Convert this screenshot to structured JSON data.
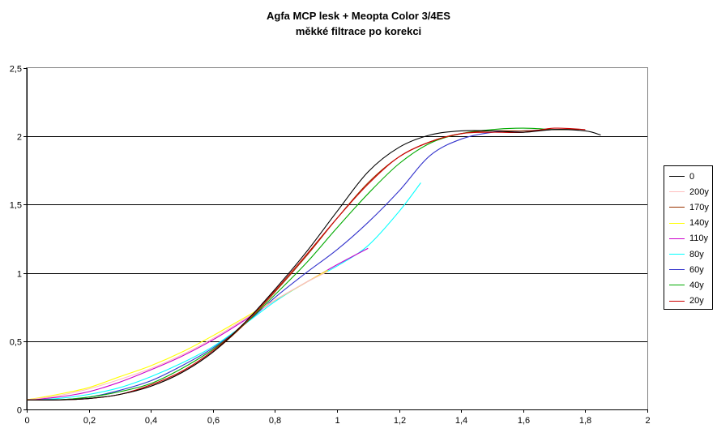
{
  "chart_data": {
    "type": "line",
    "title": "Agfa MCP lesk + Meopta Color 3/4ES",
    "subtitle": "měkké filtrace po korekci",
    "xlabel": "",
    "ylabel": "",
    "xlim": [
      0,
      2
    ],
    "ylim": [
      0,
      2.5
    ],
    "x_ticks": [
      "0",
      "0,2",
      "0,4",
      "0,6",
      "0,8",
      "1",
      "1,2",
      "1,4",
      "1,6",
      "1,8",
      "2"
    ],
    "y_ticks": [
      "0",
      "0,5",
      "1",
      "1,5",
      "2",
      "2,5"
    ],
    "grid": "horizontal",
    "legend": "right",
    "series": [
      {
        "name": "0",
        "color": "#000000",
        "x": [
          0,
          0.1,
          0.2,
          0.3,
          0.4,
          0.5,
          0.6,
          0.7,
          0.8,
          0.9,
          1.0,
          1.1,
          1.2,
          1.3,
          1.4,
          1.5,
          1.6,
          1.7,
          1.8,
          1.85
        ],
        "y": [
          0.07,
          0.07,
          0.08,
          0.11,
          0.17,
          0.27,
          0.42,
          0.63,
          0.88,
          1.15,
          1.45,
          1.74,
          1.92,
          2.01,
          2.04,
          2.04,
          2.03,
          2.05,
          2.04,
          2.01
        ]
      },
      {
        "name": "200y",
        "color": "#ffbfbf",
        "x": [
          0,
          0.1,
          0.2,
          0.3,
          0.4,
          0.5,
          0.6,
          0.7,
          0.8,
          0.9,
          0.97
        ],
        "y": [
          0.07,
          0.1,
          0.15,
          0.22,
          0.3,
          0.4,
          0.52,
          0.66,
          0.8,
          0.93,
          1.01
        ]
      },
      {
        "name": "170y",
        "color": "#993300",
        "x": [
          0,
          0.1,
          0.2,
          0.3,
          0.4,
          0.5,
          0.6,
          0.7,
          0.8,
          0.9,
          1.0,
          1.1,
          1.2,
          1.3,
          1.4,
          1.5,
          1.6,
          1.7,
          1.78
        ],
        "y": [
          0.07,
          0.07,
          0.08,
          0.11,
          0.17,
          0.27,
          0.42,
          0.62,
          0.86,
          1.12,
          1.4,
          1.66,
          1.85,
          1.96,
          2.02,
          2.04,
          2.04,
          2.05,
          2.05
        ]
      },
      {
        "name": "140y",
        "color": "#ffff00",
        "x": [
          0,
          0.1,
          0.2,
          0.3,
          0.4,
          0.5,
          0.6,
          0.7,
          0.8,
          0.9,
          0.97
        ],
        "y": [
          0.07,
          0.11,
          0.16,
          0.24,
          0.32,
          0.42,
          0.54,
          0.67,
          0.8,
          0.93,
          1.02
        ]
      },
      {
        "name": "110y",
        "color": "#cc00cc",
        "x": [
          0,
          0.1,
          0.2,
          0.3,
          0.4,
          0.5,
          0.6,
          0.7,
          0.8,
          0.9,
          1.0,
          1.1
        ],
        "y": [
          0.07,
          0.09,
          0.13,
          0.2,
          0.29,
          0.39,
          0.51,
          0.65,
          0.8,
          0.93,
          1.06,
          1.18
        ]
      },
      {
        "name": "80y",
        "color": "#00ffff",
        "x": [
          0,
          0.1,
          0.2,
          0.3,
          0.4,
          0.5,
          0.6,
          0.7,
          0.8,
          0.9,
          1.0,
          1.1,
          1.2,
          1.27
        ],
        "y": [
          0.07,
          0.08,
          0.11,
          0.16,
          0.24,
          0.34,
          0.46,
          0.62,
          0.79,
          0.93,
          1.05,
          1.2,
          1.45,
          1.66
        ]
      },
      {
        "name": "60y",
        "color": "#3333cc",
        "x": [
          0,
          0.1,
          0.2,
          0.3,
          0.4,
          0.5,
          0.6,
          0.7,
          0.8,
          0.9,
          1.0,
          1.1,
          1.2,
          1.3,
          1.4,
          1.5,
          1.6,
          1.7,
          1.75
        ],
        "y": [
          0.07,
          0.07,
          0.09,
          0.14,
          0.21,
          0.32,
          0.45,
          0.62,
          0.82,
          1.0,
          1.17,
          1.37,
          1.6,
          1.86,
          1.98,
          2.03,
          2.04,
          2.05,
          2.05
        ]
      },
      {
        "name": "40y",
        "color": "#00aa00",
        "x": [
          0,
          0.1,
          0.2,
          0.3,
          0.4,
          0.5,
          0.6,
          0.7,
          0.8,
          0.9,
          1.0,
          1.1,
          1.2,
          1.3,
          1.4,
          1.5,
          1.6,
          1.7,
          1.75
        ],
        "y": [
          0.07,
          0.07,
          0.09,
          0.13,
          0.19,
          0.3,
          0.44,
          0.62,
          0.84,
          1.07,
          1.33,
          1.58,
          1.8,
          1.95,
          2.02,
          2.05,
          2.06,
          2.05,
          2.05
        ]
      },
      {
        "name": "20y",
        "color": "#cc0000",
        "x": [
          0,
          0.1,
          0.2,
          0.3,
          0.4,
          0.5,
          0.6,
          0.7,
          0.8,
          0.9,
          1.0,
          1.1,
          1.2,
          1.3,
          1.4,
          1.5,
          1.6,
          1.7,
          1.8
        ],
        "y": [
          0.07,
          0.07,
          0.08,
          0.11,
          0.18,
          0.28,
          0.43,
          0.63,
          0.87,
          1.13,
          1.4,
          1.65,
          1.85,
          1.96,
          2.02,
          2.03,
          2.03,
          2.06,
          2.05
        ]
      }
    ]
  }
}
